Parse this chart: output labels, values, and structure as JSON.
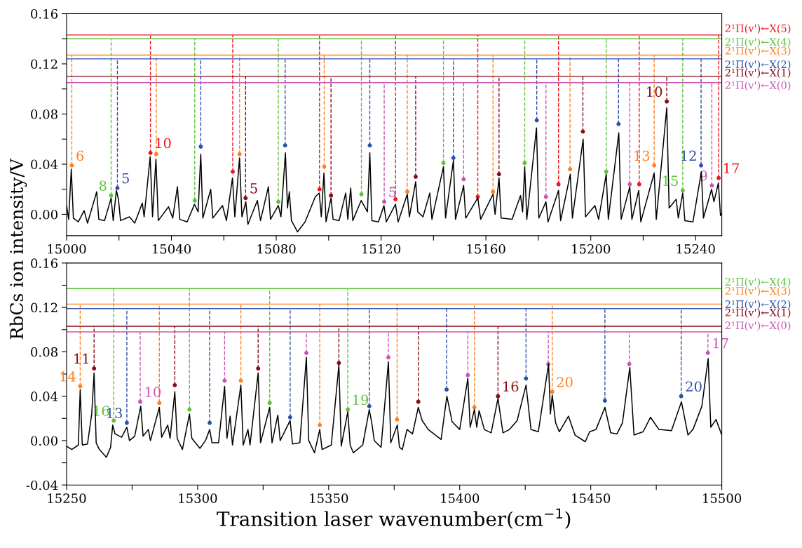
{
  "chart_data": [
    {
      "type": "line",
      "ylabel": "RbCs ion intensity/V",
      "xlim": [
        15000,
        15250
      ],
      "ylim": [
        -0.017,
        0.16
      ],
      "xticks": [
        15000,
        {
          "value": 15020,
          "label": null
        },
        15040,
        {
          "value": 15060,
          "label": null
        },
        15080,
        {
          "value": 15100,
          "label": null
        },
        15120,
        {
          "value": 15140,
          "label": null
        },
        15160,
        {
          "value": 15180,
          "label": null
        },
        15200,
        {
          "value": 15220,
          "label": null
        },
        15240
      ],
      "yticks": [
        {
          "value": 0,
          "label": "0.00"
        },
        {
          "value": 0.02,
          "label": null
        },
        0.04,
        {
          "value": 0.06,
          "label": null
        },
        0.08,
        {
          "value": 0.1,
          "label": null
        },
        0.12,
        {
          "value": 0.14,
          "label": null
        },
        0.16
      ],
      "series": [
        {
          "color": "#000000",
          "x": [
            15000.0,
            15000.8,
            15001.8,
            15002.6,
            15004.5,
            15006.7,
            15008,
            15011.5,
            15012.3,
            15014.5,
            15017.0,
            15017.8,
            15019.0,
            15019.8,
            15020.6,
            15024,
            15026,
            15028.9,
            15029.6,
            15031.9,
            15032.8,
            15034.1,
            15035,
            15038.9,
            15040.5,
            15042.3,
            15043.2,
            15046,
            15048.8,
            15050.2,
            15051.2,
            15052.0,
            15055.0,
            15055.8,
            15059.5,
            15061,
            15063.3,
            15064.2,
            15066.0,
            15066.9,
            15068.4,
            15069.2,
            15072.8,
            15074,
            15077.0,
            15077.8,
            15080.8,
            15081.8,
            15083.5,
            15084.3,
            15085.0,
            15085.8,
            15088.1,
            15091,
            15094.9,
            15096.4,
            15097.2,
            15098.2,
            15099.0,
            15100.9,
            15101.7,
            15104,
            15106.5,
            15107.3,
            15108.4,
            15109.2,
            15112.4,
            15114.8,
            15115.7,
            15116.5,
            15119,
            15121.1,
            15122,
            15125.5,
            15126.5,
            15130.0,
            15130.8,
            15133.2,
            15134.0,
            15136,
            15138.6,
            15139.4,
            15143.8,
            15144.6,
            15147.6,
            15148.4,
            15151.5,
            15152.3,
            15156.9,
            15158,
            15162.7,
            15163.5,
            15165.0,
            15165.8,
            15170,
            15173.2,
            15174.0,
            15174.8,
            15175.6,
            15179.3,
            15180.2,
            15182.9,
            15183.7,
            15187.7,
            15188.5,
            15192.2,
            15193.0,
            15197.1,
            15198.0,
            15201.6,
            15203,
            15205.9,
            15206.7,
            15210.7,
            15211.6,
            15214.9,
            15215.7,
            15218.3,
            15219.1,
            15224.2,
            15225.0,
            15229.0,
            15229.9,
            15232.6,
            15233.4,
            15235.1,
            15235.9,
            15239,
            15242.2,
            15243.0,
            15246.1,
            15247.0,
            15248.7,
            15249.5,
            15250.0
          ],
          "values": [
            0.007,
            -0.004,
            0.036,
            -0.003,
            -0.006,
            0.003,
            -0.007,
            0.018,
            -0.004,
            -0.005,
            0.013,
            -0.005,
            0.019,
            0.012,
            -0.005,
            -0.002,
            -0.007,
            0.009,
            -0.002,
            0.046,
            -0.002,
            0.044,
            -0.005,
            0.006,
            -0.003,
            0.022,
            -0.004,
            -0.006,
            0.008,
            0.002,
            0.048,
            -0.003,
            0.02,
            -0.003,
            0.007,
            -0.005,
            0.029,
            -0.002,
            0.045,
            -0.002,
            0.01,
            -0.008,
            0.011,
            -0.005,
            0.022,
            -0.004,
            0.007,
            -0.002,
            0.049,
            0.005,
            0.018,
            -0.005,
            -0.014,
            -0.006,
            0.014,
            0.017,
            -0.002,
            0.033,
            -0.006,
            0.013,
            -0.004,
            -0.005,
            0.017,
            -0.004,
            0.021,
            -0.005,
            0.011,
            0.002,
            0.049,
            -0.005,
            -0.006,
            0.007,
            -0.006,
            0.008,
            -0.006,
            0.016,
            -0.002,
            0.026,
            0.002,
            -0.002,
            0.017,
            -0.004,
            0.038,
            -0.003,
            0.043,
            -0.004,
            0.023,
            -0.003,
            0.013,
            -0.004,
            0.016,
            0.0,
            0.029,
            -0.003,
            -0.004,
            0.015,
            0.002,
            0.038,
            -0.004,
            0.069,
            -0.003,
            0.01,
            -0.006,
            0.019,
            -0.005,
            0.032,
            -0.003,
            0.06,
            -0.002,
            0.007,
            -0.004,
            0.032,
            -0.004,
            0.065,
            -0.004,
            0.022,
            -0.004,
            0.019,
            -0.006,
            0.033,
            -0.004,
            0.085,
            0.005,
            0.012,
            -0.003,
            0.017,
            -0.005,
            -0.006,
            0.034,
            -0.003,
            0.02,
            0.01,
            0.025,
            -0.001,
            0.001
          ]
        },
        {
          "type": "scatter",
          "marker": "circle",
          "line_style": "dashed",
          "color": "#f0141e",
          "x": [
            15032.0,
            15063.4,
            15096.5,
            15125.5,
            15156.9,
            15187.7,
            15218.5,
            15248.8
          ],
          "values": [
            0.049,
            0.034,
            0.02,
            0.012,
            0.014,
            0.024,
            0.024,
            0.029
          ],
          "errors": [
            [
              0.049,
              0.143
            ],
            [
              0.034,
              0.143
            ],
            [
              0.02,
              0.143
            ],
            [
              0.012,
              0.143
            ],
            [
              0.014,
              0.143
            ],
            [
              0.024,
              0.143
            ],
            [
              0.024,
              0.143
            ],
            [
              0.029,
              0.143
            ]
          ]
        },
        {
          "type": "scatter",
          "marker": "circle",
          "line_style": "dashed",
          "color": "#5cc23c",
          "x": [
            15017.0,
            15048.9,
            15080.8,
            15112.5,
            15143.8,
            15174.8,
            15205.9,
            15235.1
          ],
          "values": [
            0.015,
            0.011,
            0.01,
            0.016,
            0.041,
            0.041,
            0.034,
            0.019
          ],
          "errors": [
            [
              0.015,
              0.14
            ],
            [
              0.011,
              0.14
            ],
            [
              0.01,
              0.14
            ],
            [
              0.016,
              0.14
            ],
            [
              0.041,
              0.14
            ],
            [
              0.041,
              0.14
            ],
            [
              0.034,
              0.14
            ],
            [
              0.019,
              0.14
            ]
          ]
        },
        {
          "type": "scatter",
          "marker": "circle",
          "line_style": "dashed",
          "color": "#ff8020",
          "x": [
            15002.0,
            15034.2,
            15066.0,
            15098.3,
            15130.0,
            15162.7,
            15192.1,
            15224.2
          ],
          "values": [
            0.039,
            0.048,
            0.048,
            0.038,
            0.018,
            0.018,
            0.036,
            0.039
          ],
          "errors": [
            [
              0.039,
              0.127
            ],
            [
              0.048,
              0.127
            ],
            [
              0.048,
              0.127
            ],
            [
              0.038,
              0.127
            ],
            [
              0.018,
              0.127
            ],
            [
              0.018,
              0.127
            ],
            [
              0.036,
              0.127
            ],
            [
              0.039,
              0.127
            ]
          ]
        },
        {
          "type": "scatter",
          "marker": "circle",
          "line_style": "dashed",
          "color": "#2e4fa8",
          "x": [
            15019.4,
            15051.2,
            15083.4,
            15115.7,
            15147.6,
            15179.4,
            15210.6,
            15242.1
          ],
          "values": [
            0.021,
            0.054,
            0.055,
            0.055,
            0.045,
            0.075,
            0.072,
            0.039
          ],
          "errors": [
            [
              0.021,
              0.124
            ],
            [
              0.054,
              0.124
            ],
            [
              0.055,
              0.124
            ],
            [
              0.055,
              0.124
            ],
            [
              0.045,
              0.124
            ],
            [
              0.075,
              0.124
            ],
            [
              0.072,
              0.124
            ],
            [
              0.039,
              0.124
            ]
          ]
        },
        {
          "type": "scatter",
          "marker": "circle",
          "line_style": "dashed",
          "color": "#8b0a14",
          "x": [
            15068.3,
            15100.9,
            15133.2,
            15165.0,
            15197.0,
            15229.0
          ],
          "values": [
            0.013,
            0.015,
            0.03,
            0.032,
            0.066,
            0.09
          ],
          "errors": [
            [
              0.013,
              0.11
            ],
            [
              0.015,
              0.11
            ],
            [
              0.03,
              0.11
            ],
            [
              0.032,
              0.11
            ],
            [
              0.066,
              0.11
            ],
            [
              0.09,
              0.11
            ]
          ]
        },
        {
          "type": "scatter",
          "marker": "circle",
          "line_style": "dashed",
          "color": "#c855b4",
          "x": [
            15121.2,
            15151.5,
            15182.9,
            15214.9,
            15246.2
          ],
          "values": [
            0.01,
            0.028,
            0.014,
            0.024,
            0.023
          ],
          "errors": [
            [
              0.01,
              0.105
            ],
            [
              0.028,
              0.105
            ],
            [
              0.014,
              0.105
            ],
            [
              0.024,
              0.105
            ],
            [
              0.023,
              0.105
            ]
          ]
        }
      ],
      "ref_lines": [
        {
          "axis": "y",
          "value": 0.143,
          "label": "2¹Π(v')←X(5)",
          "color": "#f0141e"
        },
        {
          "axis": "y",
          "value": 0.14,
          "label": "2¹Π(v')←X(4)",
          "color": "#5cc23c"
        },
        {
          "axis": "y",
          "value": 0.127,
          "label": "2¹Π(v')←X(3)",
          "color": "#ff8020"
        },
        {
          "axis": "y",
          "value": 0.124,
          "label": "2¹Π(v')←X(2)",
          "color": "#2e4fa8"
        },
        {
          "axis": "y",
          "value": 0.11,
          "label": "2¹Π(v')←X(1)",
          "color": "#8b0a14"
        },
        {
          "axis": "y",
          "value": 0.105,
          "label": "2¹Π(v')←X(0)",
          "color": "#c855b4"
        }
      ],
      "annotations": [
        {
          "text": "6",
          "x": 15002.0,
          "y": 0.039
        },
        {
          "text": "8",
          "x": 15017.0,
          "y": 0.015
        },
        {
          "text": "5",
          "x": 15019.4,
          "y": 0.021
        },
        {
          "text": "10",
          "x": 15032.0,
          "y": 0.049
        },
        {
          "text": "5",
          "x": 15068.3,
          "y": 0.013
        },
        {
          "text": "5",
          "x": 15121.2,
          "y": 0.01
        },
        {
          "text": "13",
          "x": 15224.2,
          "y": 0.039
        },
        {
          "text": "10",
          "x": 15229.0,
          "y": 0.09
        },
        {
          "text": "15",
          "x": 15235.1,
          "y": 0.019
        },
        {
          "text": "12",
          "x": 15242.1,
          "y": 0.039
        },
        {
          "text": "9",
          "x": 15246.2,
          "y": 0.023
        },
        {
          "text": "17",
          "x": 15248.8,
          "y": 0.029
        }
      ]
    },
    {
      "type": "line",
      "xlabel": "Transition laser wavenumber(cm$^{−1}$)",
      "xlim": [
        15250,
        15500
      ],
      "ylim": [
        -0.04,
        0.16
      ],
      "xticks": [
        15250,
        {
          "value": 15275,
          "label": null
        },
        15300,
        {
          "value": 15325,
          "label": null
        },
        15350,
        {
          "value": 15375,
          "label": null
        },
        15400,
        {
          "value": 15425,
          "label": null
        },
        15450,
        {
          "value": 15475,
          "label": null
        },
        15500
      ],
      "yticks": [
        -0.04,
        {
          "value": -0.02,
          "label": null
        },
        {
          "value": 0,
          "label": "0.00"
        },
        {
          "value": 0.02,
          "label": null
        },
        0.04,
        {
          "value": 0.06,
          "label": null
        },
        0.08,
        {
          "value": 0.1,
          "label": null
        },
        0.12,
        {
          "value": 0.14,
          "label": null
        },
        0.16
      ],
      "series": [
        {
          "color": "#000000",
          "x": [
            15250.0,
            15252,
            15254.5,
            15255.2,
            15256.0,
            15258,
            15259.6,
            15260.5,
            15261.3,
            15262.5,
            15265.2,
            15266.8,
            15267.6,
            15268.5,
            15271,
            15273.0,
            15274,
            15276,
            15278.3,
            15279.2,
            15281.2,
            15282,
            15285.4,
            15286.3,
            15288.6,
            15289.5,
            15291.3,
            15292.2,
            15294.2,
            15296.9,
            15297.8,
            15300.9,
            15303,
            15304.6,
            15305.5,
            15308,
            15310.3,
            15311.2,
            15312.4,
            15313.3,
            15316.5,
            15317.4,
            15319.2,
            15320,
            15323.1,
            15324,
            15327.5,
            15328.4,
            15330.6,
            15331.5,
            15335.3,
            15336.2,
            15339,
            15341.5,
            15342.4,
            15344.6,
            15346.6,
            15347.5,
            15351,
            15353.9,
            15354.8,
            15357.3,
            15358.2,
            15359.4,
            15363,
            15365.5,
            15366.5,
            15367.4,
            15370,
            15372.8,
            15373.7,
            15376.2,
            15377,
            15378.1,
            15379.9,
            15382,
            15384.2,
            15385.7,
            15388,
            15392.9,
            15395.1,
            15397.1,
            15400,
            15403.1,
            15404,
            15405.6,
            15406.5,
            15407.4,
            15409.4,
            15412,
            15414.6,
            15416.5,
            15419,
            15421.9,
            15425.3,
            15427.2,
            15430,
            15433.9,
            15434.6,
            15435.3,
            15436.6,
            15438,
            15441.5,
            15444,
            15447.9,
            15449.6,
            15452,
            15455.4,
            15457.6,
            15460,
            15462.1,
            15464.9,
            15466.5,
            15470,
            15472.8,
            15476,
            15480.8,
            15484.6,
            15487.1,
            15489,
            15492.4,
            15494.8,
            15495.8,
            15497.8,
            15500.0
          ],
          "values": [
            -0.005,
            -0.008,
            -0.004,
            0.046,
            -0.004,
            -0.003,
            0.024,
            0.061,
            -0.002,
            -0.008,
            -0.015,
            -0.006,
            0.014,
            0.006,
            0.003,
            0.012,
            0.0,
            0.004,
            0.031,
            0.004,
            0.01,
            0.0,
            0.03,
            0.003,
            0.014,
            0.002,
            0.044,
            0.002,
            -0.008,
            0.024,
            0.002,
            -0.007,
            0.0,
            0.01,
            -0.002,
            -0.002,
            0.049,
            0.002,
            0.022,
            -0.004,
            0.05,
            -0.004,
            0.01,
            -0.004,
            0.061,
            -0.002,
            0.03,
            -0.002,
            0.023,
            0.0,
            0.018,
            -0.003,
            -0.002,
            0.075,
            0.0,
            -0.011,
            0.01,
            -0.008,
            -0.004,
            0.068,
            -0.005,
            0.026,
            -0.004,
            -0.011,
            -0.004,
            0.028,
            0.015,
            0.0,
            -0.006,
            0.071,
            -0.002,
            0.014,
            -0.006,
            -0.008,
            0.01,
            0.006,
            0.03,
            0.018,
            0.01,
            0.001,
            0.04,
            0.017,
            0.01,
            0.056,
            0.012,
            0.028,
            0.012,
            0.027,
            0.01,
            0.007,
            0.038,
            0.007,
            0.01,
            0.018,
            0.05,
            0.01,
            0.008,
            0.069,
            0.024,
            0.041,
            0.016,
            0.008,
            0.022,
            0.005,
            -0.001,
            0.008,
            0.01,
            0.03,
            0.007,
            0.006,
            0.016,
            0.066,
            0.005,
            0.008,
            0.021,
            0.01,
            0.009,
            0.035,
            0.005,
            0.01,
            0.031,
            0.074,
            0.012,
            0.019,
            0.005
          ]
        },
        {
          "type": "scatter",
          "marker": "circle",
          "line_style": "dashed",
          "color": "#5cc23c",
          "x": [
            15268.0,
            15296.9,
            15327.5,
            15357.3
          ],
          "values": [
            0.018,
            0.028,
            0.034,
            0.028
          ],
          "errors": [
            [
              0.018,
              0.137
            ],
            [
              0.028,
              0.137
            ],
            [
              0.034,
              0.137
            ],
            [
              0.028,
              0.137
            ]
          ]
        },
        {
          "type": "scatter",
          "marker": "circle",
          "line_style": "dashed",
          "color": "#ff8020",
          "x": [
            15255.2,
            15285.4,
            15316.5,
            15346.6,
            15376.1,
            15405.6,
            15435.3
          ],
          "values": [
            0.049,
            0.034,
            0.054,
            0.014,
            0.019,
            0.03,
            0.044
          ],
          "errors": [
            [
              0.049,
              0.123
            ],
            [
              0.034,
              0.123
            ],
            [
              0.054,
              0.123
            ],
            [
              0.014,
              0.123
            ],
            [
              0.019,
              0.123
            ],
            [
              0.03,
              0.123
            ],
            [
              0.044,
              0.123
            ]
          ]
        },
        {
          "type": "scatter",
          "marker": "circle",
          "line_style": "dashed",
          "color": "#2e4fa8",
          "x": [
            15273.0,
            15304.6,
            15335.3,
            15365.5,
            15395.0,
            15425.3,
            15455.4,
            15484.5
          ],
          "values": [
            0.016,
            0.016,
            0.021,
            0.031,
            0.046,
            0.056,
            0.036,
            0.04
          ],
          "errors": [
            [
              0.016,
              0.119
            ],
            [
              0.016,
              0.119
            ],
            [
              0.021,
              0.119
            ],
            [
              0.031,
              0.119
            ],
            [
              0.046,
              0.119
            ],
            [
              0.056,
              0.119
            ],
            [
              0.036,
              0.119
            ],
            [
              0.04,
              0.119
            ]
          ]
        },
        {
          "type": "scatter",
          "marker": "circle",
          "line_style": "dashed",
          "color": "#8b0a14",
          "x": [
            15260.5,
            15291.3,
            15323.1,
            15353.9,
            15384.2,
            15414.6
          ],
          "values": [
            0.065,
            0.05,
            0.065,
            0.07,
            0.035,
            0.04
          ],
          "errors": [
            [
              0.065,
              0.103
            ],
            [
              0.05,
              0.103
            ],
            [
              0.065,
              0.103
            ],
            [
              0.07,
              0.103
            ],
            [
              0.035,
              0.103
            ],
            [
              0.04,
              0.103
            ]
          ]
        },
        {
          "type": "scatter",
          "marker": "circle",
          "line_style": "dashed",
          "color": "#c855b4",
          "x": [
            15278.1,
            15310.3,
            15341.5,
            15372.8,
            15403.1,
            15433.8,
            15464.7,
            15494.7
          ],
          "values": [
            0.035,
            0.054,
            0.079,
            0.075,
            0.059,
            0.069,
            0.069,
            0.079
          ],
          "errors": [
            [
              0.035,
              0.098
            ],
            [
              0.054,
              0.098
            ],
            [
              0.079,
              0.098
            ],
            [
              0.075,
              0.098
            ],
            [
              0.059,
              0.098
            ],
            [
              0.069,
              0.098
            ],
            [
              0.069,
              0.098
            ],
            [
              0.079,
              0.098
            ]
          ]
        }
      ],
      "ref_lines": [
        {
          "axis": "y",
          "value": 0.137,
          "label": "2¹Π(v')←X(4)",
          "color": "#5cc23c"
        },
        {
          "axis": "y",
          "value": 0.123,
          "label": "2¹Π(v')←X(3)",
          "color": "#ff8020"
        },
        {
          "axis": "y",
          "value": 0.119,
          "label": "2¹Π(v')←X(2)",
          "color": "#2e4fa8"
        },
        {
          "axis": "y",
          "value": 0.103,
          "label": "2¹Π(v')←X(1)",
          "color": "#8b0a14"
        },
        {
          "axis": "y",
          "value": 0.098,
          "label": "2¹Π(v')←X(0)",
          "color": "#c855b4"
        }
      ],
      "annotations": [
        {
          "text": "14",
          "x": 15255.2,
          "y": 0.049
        },
        {
          "text": "11",
          "x": 15260.5,
          "y": 0.065
        },
        {
          "text": "16",
          "x": 15268.0,
          "y": 0.018
        },
        {
          "text": "13",
          "x": 15273.0,
          "y": 0.016
        },
        {
          "text": "10",
          "x": 15278.1,
          "y": 0.035
        },
        {
          "text": "19",
          "x": 15357.3,
          "y": 0.028
        },
        {
          "text": "16",
          "x": 15414.6,
          "y": 0.04
        },
        {
          "text": "20",
          "x": 15435.3,
          "y": 0.044
        },
        {
          "text": "20",
          "x": 15484.5,
          "y": 0.04
        },
        {
          "text": "17",
          "x": 15494.7,
          "y": 0.079
        }
      ]
    }
  ]
}
